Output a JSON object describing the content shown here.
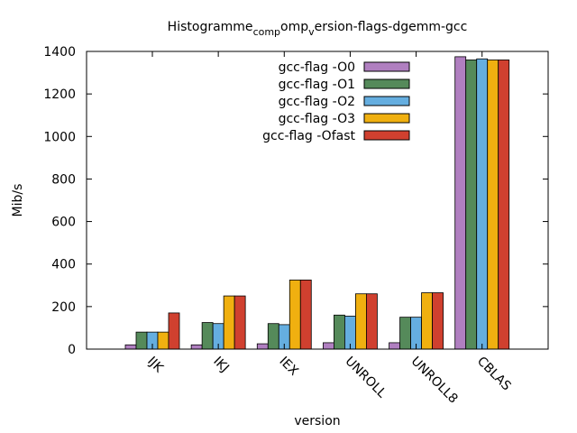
{
  "chart_data": {
    "type": "bar",
    "title": {
      "base": "Histogramme",
      "sub1": "comp",
      "mid": "omp",
      "sub2": "v",
      "rest": "ersion-flags-dgemm-gcc"
    },
    "xlabel": "version",
    "ylabel": "Mib/s",
    "ylim": [
      0,
      1400
    ],
    "yticks": [
      0,
      200,
      400,
      600,
      800,
      1000,
      1200,
      1400
    ],
    "categories": [
      "IJK",
      "IKJ",
      "IEX",
      "UNROLL",
      "UNROLL8",
      "CBLAS"
    ],
    "legend_position": "top-right",
    "grid": false,
    "series": [
      {
        "name": "gcc-flag -O0",
        "color": "#b07fc0",
        "values": [
          20,
          20,
          25,
          30,
          30,
          1375
        ]
      },
      {
        "name": "gcc-flag -O1",
        "color": "#558a5a",
        "values": [
          80,
          125,
          120,
          160,
          150,
          1360
        ]
      },
      {
        "name": "gcc-flag -O2",
        "color": "#65aee0",
        "values": [
          80,
          120,
          115,
          155,
          150,
          1365
        ]
      },
      {
        "name": "gcc-flag -O3",
        "color": "#f0b010",
        "values": [
          80,
          250,
          325,
          260,
          265,
          1360
        ]
      },
      {
        "name": "gcc-flag -Ofast",
        "color": "#d0402f",
        "values": [
          170,
          250,
          325,
          260,
          265,
          1360
        ]
      }
    ]
  }
}
